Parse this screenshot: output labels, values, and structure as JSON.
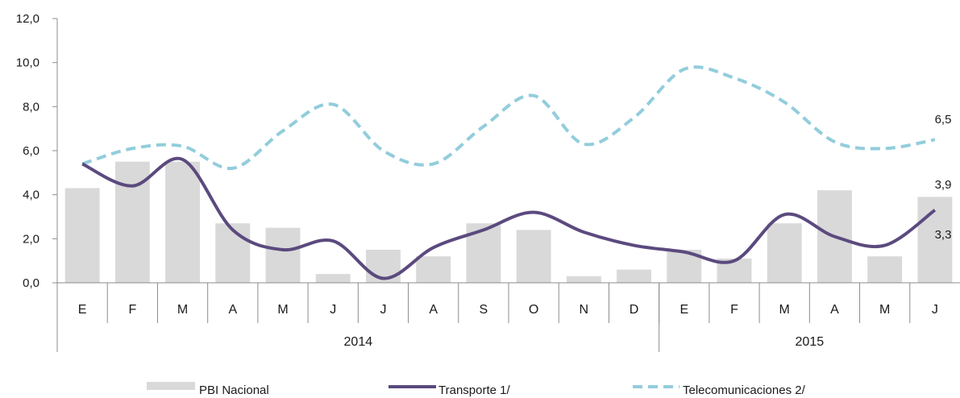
{
  "chart_data": {
    "type": "bar",
    "title": "",
    "xlabel": "",
    "ylabel": "",
    "ylim": [
      0,
      12
    ],
    "yticks": [
      "0,0",
      "2,0",
      "4,0",
      "6,0",
      "8,0",
      "10,0",
      "12,0"
    ],
    "grid": false,
    "legend_position": "bottom",
    "categories": [
      "E",
      "F",
      "M",
      "A",
      "M",
      "J",
      "J",
      "A",
      "S",
      "O",
      "N",
      "D",
      "E",
      "F",
      "M",
      "A",
      "M",
      "J"
    ],
    "year_groups": [
      {
        "label": "2014",
        "count": 12
      },
      {
        "label": "2015",
        "count": 6
      }
    ],
    "series": [
      {
        "name": "PBI Nacional",
        "type": "bar",
        "color": "#d9d9d9",
        "values": [
          4.3,
          5.5,
          5.5,
          2.7,
          2.5,
          0.4,
          1.5,
          1.2,
          2.7,
          2.4,
          0.3,
          0.6,
          1.5,
          1.1,
          2.7,
          4.2,
          1.2,
          3.9
        ]
      },
      {
        "name": "Transporte 1/",
        "type": "line",
        "style": "solid",
        "color": "#5b4a7e",
        "values": [
          5.4,
          4.4,
          5.6,
          2.4,
          1.5,
          1.9,
          0.2,
          1.6,
          2.4,
          3.2,
          2.3,
          1.7,
          1.4,
          1.0,
          3.1,
          2.1,
          1.7,
          3.3
        ]
      },
      {
        "name": "Telecomunicaciones 2/",
        "type": "line",
        "style": "dashed",
        "color": "#92cddc",
        "values": [
          5.4,
          6.1,
          6.2,
          5.2,
          6.9,
          8.1,
          6.0,
          5.4,
          7.1,
          8.5,
          6.3,
          7.5,
          9.7,
          9.3,
          8.2,
          6.4,
          6.1,
          6.5
        ]
      }
    ],
    "end_labels": {
      "telecom": "6,5",
      "pbi": "3,9",
      "transporte": "3,3"
    }
  }
}
